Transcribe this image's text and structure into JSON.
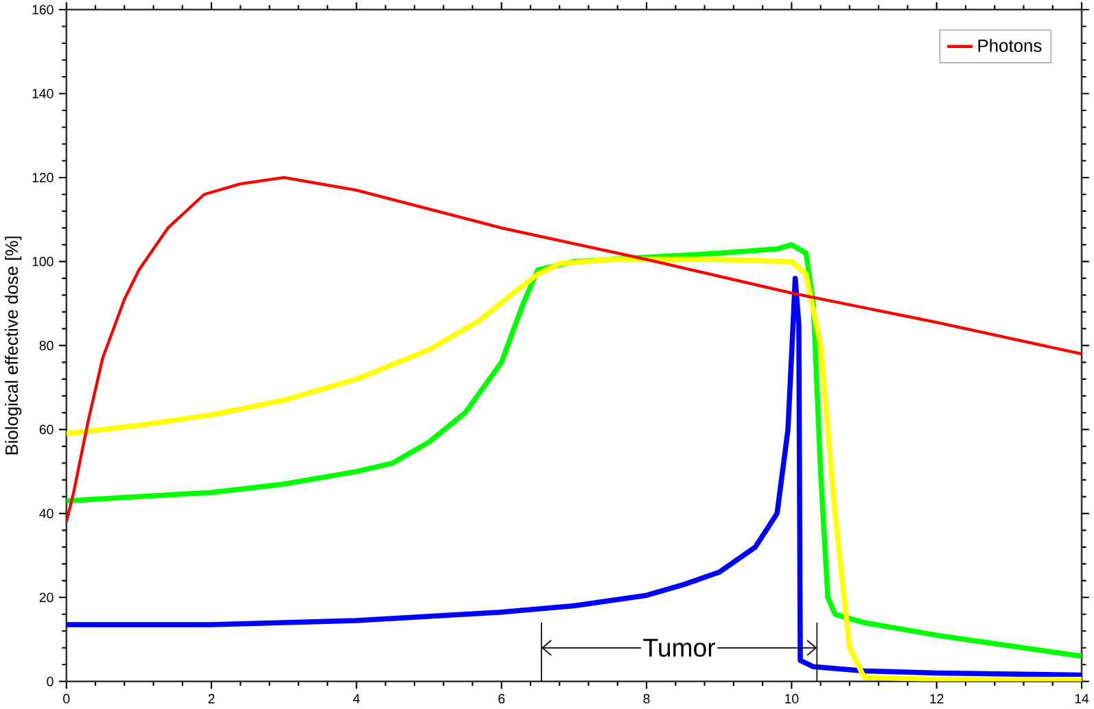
{
  "chart_data": {
    "type": "line",
    "ylabel": "Biological effective dose [%]",
    "xlim": [
      0,
      14
    ],
    "ylim": [
      0,
      160
    ],
    "xticks": [
      0,
      2,
      4,
      6,
      8,
      10,
      12,
      14
    ],
    "yticks": [
      0,
      20,
      40,
      60,
      80,
      100,
      120,
      140,
      160
    ],
    "legend": "top right",
    "grid": false,
    "marker": "none",
    "line_style": "solid",
    "ref_lines": [
      {
        "axis": "x",
        "value": 6.55
      },
      {
        "axis": "x",
        "value": 10.35
      }
    ],
    "annotations": [
      {
        "text": "Tumor",
        "x": 6.55,
        "y": 8
      }
    ],
    "series": [
      {
        "name": "Photons",
        "color": "#ff0000",
        "x": [
          0,
          0.1,
          0.3,
          0.5,
          0.8,
          1.0,
          1.4,
          1.9,
          2.4,
          3.0,
          4,
          6,
          8,
          10,
          12,
          14
        ],
        "values": [
          38,
          45,
          62,
          77,
          91,
          98,
          108,
          116,
          118.5,
          120,
          117,
          108,
          100.5,
          92.5,
          85.5,
          78
        ]
      },
      {
        "color": "#ffff00",
        "x": [
          0,
          1,
          2,
          3,
          4,
          5,
          5.7,
          6.2,
          6.5,
          6.8,
          7.5,
          9,
          10,
          10.2,
          10.4,
          10.6,
          10.8,
          11,
          12,
          14
        ],
        "values": [
          59,
          61,
          63.5,
          67,
          72,
          79,
          86,
          93,
          97,
          99.5,
          100.5,
          100.5,
          100,
          97,
          80,
          40,
          8,
          1,
          0.5,
          0.5
        ]
      },
      {
        "color": "#00ff00",
        "x": [
          0,
          1,
          2,
          3,
          4,
          4.5,
          5,
          5.5,
          6,
          6.3,
          6.5,
          7,
          8,
          9,
          9.8,
          10,
          10.2,
          10.3,
          10.4,
          10.5,
          10.6,
          11,
          12,
          13,
          14
        ],
        "values": [
          43,
          44,
          45,
          47,
          50,
          52,
          57,
          64,
          76,
          90,
          98,
          100,
          101,
          102,
          103,
          104,
          102,
          90,
          50,
          20,
          16,
          14,
          11,
          8.5,
          6
        ]
      },
      {
        "color": "#0000ff",
        "x": [
          0,
          2,
          4,
          6,
          7,
          8,
          8.5,
          9,
          9.5,
          9.8,
          9.95,
          10.02,
          10.05,
          10.1,
          10.12,
          10.3,
          11,
          12,
          14
        ],
        "values": [
          13.5,
          13.5,
          14.5,
          16.5,
          18,
          20.5,
          23,
          26,
          32,
          40,
          60,
          85,
          96,
          85,
          5,
          3.5,
          2.5,
          2,
          1.5
        ]
      }
    ]
  }
}
